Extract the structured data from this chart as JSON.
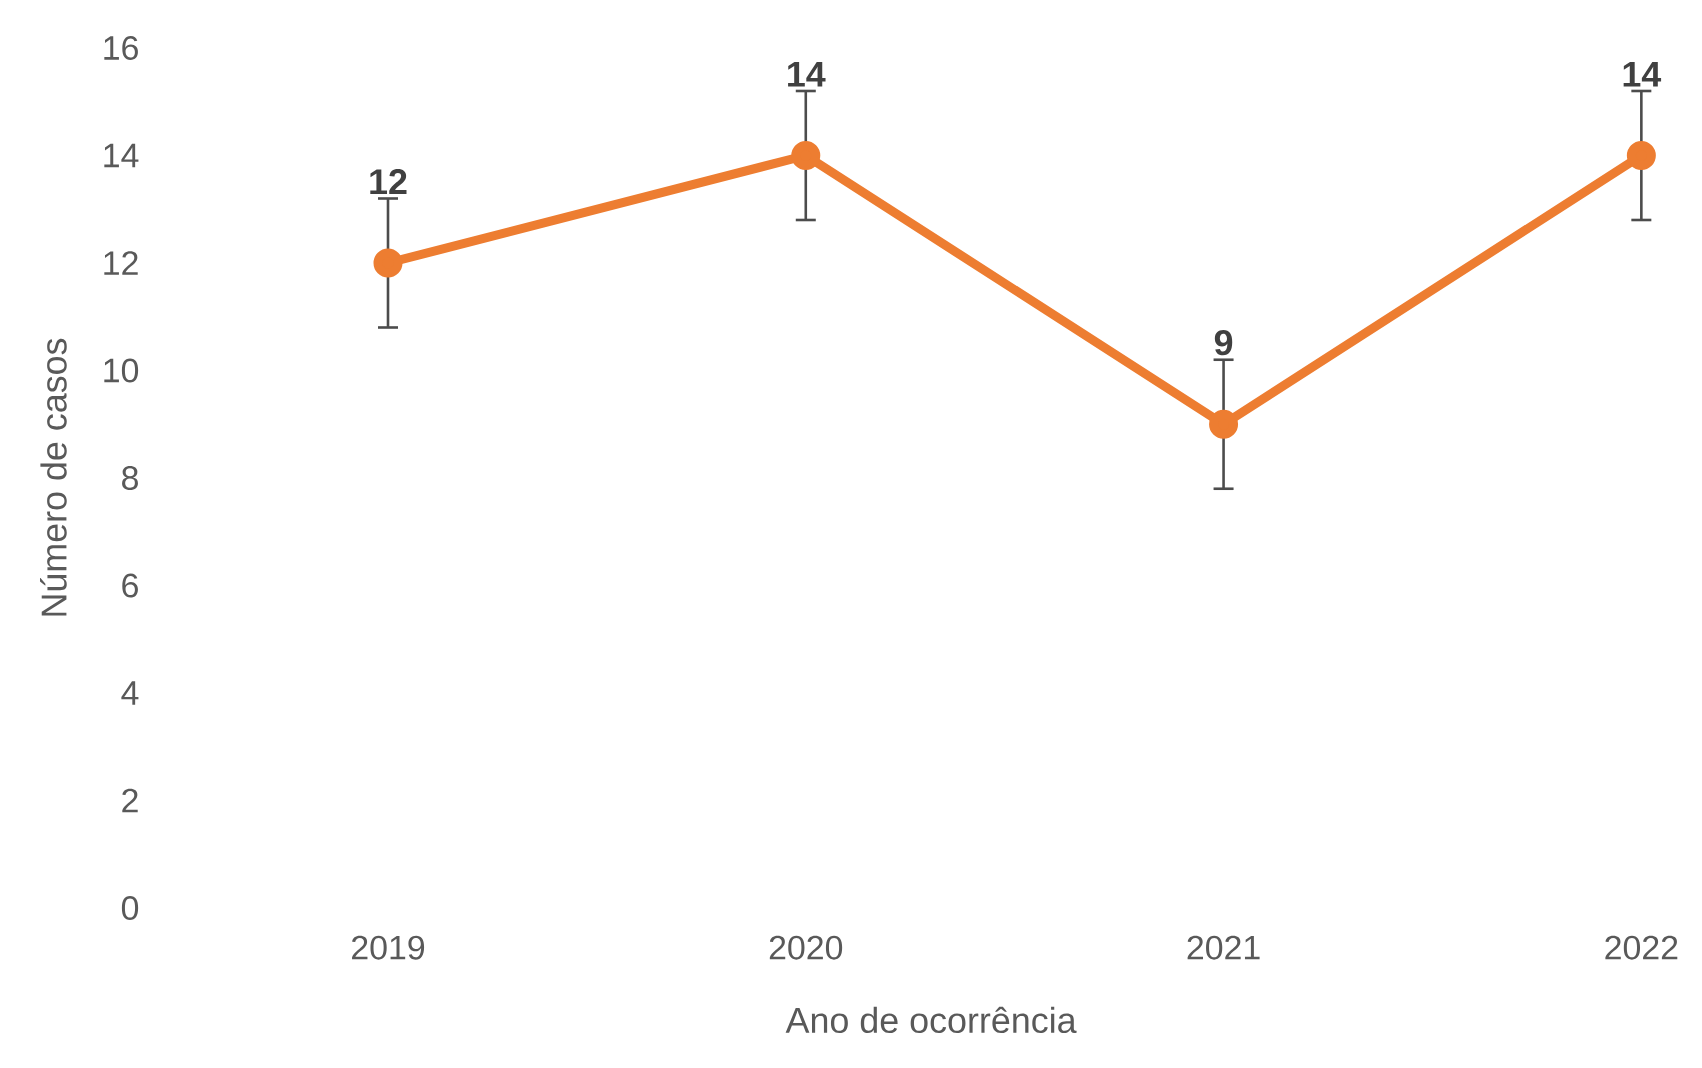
{
  "chart_data": {
    "type": "line",
    "xlabel": "Ano de ocorrência",
    "ylabel": "Número de casos",
    "categories": [
      "2019",
      "2020",
      "2021",
      "2022"
    ],
    "values": [
      12,
      14,
      9,
      14
    ],
    "errors": [
      1.2,
      1.2,
      1.2,
      1.2
    ],
    "color": "#ed7d31",
    "marker": "circle",
    "data_labels": true,
    "grid": false,
    "ylim": [
      0,
      16
    ],
    "yticks": [
      0,
      2,
      4,
      6,
      8,
      10,
      12,
      14,
      16
    ]
  }
}
